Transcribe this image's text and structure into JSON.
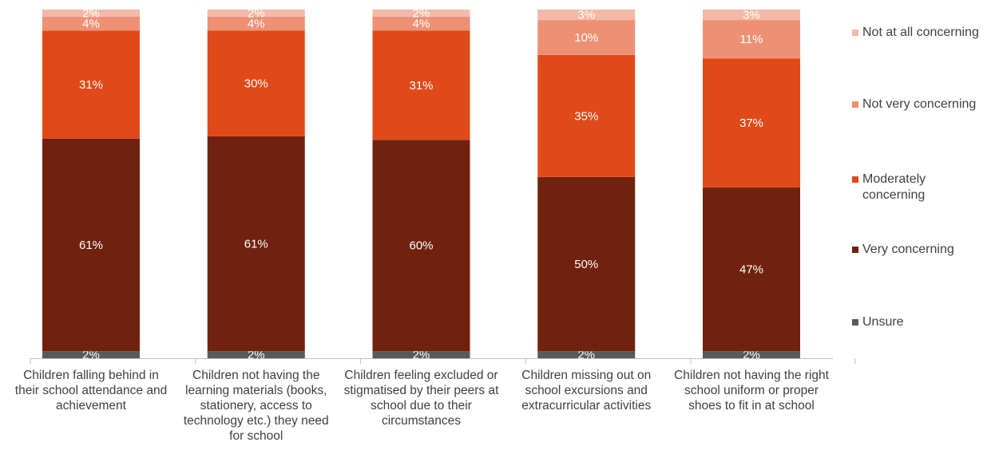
{
  "chart_data": {
    "type": "bar",
    "stacked": true,
    "categories": [
      "Children falling behind in their school attendance and achievement",
      "Children not having the learning materials (books, stationery, access to technology etc.) they need for school",
      "Children feeling excluded or stigmatised by their peers at school due to their circumstances",
      "Children missing out on school excursions and extracurricular activities",
      "Children not having the right school uniform or proper shoes to fit in at school"
    ],
    "series": [
      {
        "name": "Unsure",
        "color": "#595959",
        "values": [
          2,
          2,
          2,
          2,
          2
        ],
        "labels": [
          "2%",
          "2%",
          "2%",
          "2%",
          "2%"
        ]
      },
      {
        "name": "Very concerning",
        "color": "#70220E",
        "values": [
          61,
          61,
          60,
          50,
          47
        ],
        "labels": [
          "61%",
          "61%",
          "60%",
          "50%",
          "47%"
        ]
      },
      {
        "name": "Moderately concerning",
        "color": "#E04A1A",
        "values": [
          31,
          30,
          31,
          35,
          37
        ],
        "labels": [
          "31%",
          "30%",
          "31%",
          "35%",
          "37%"
        ]
      },
      {
        "name": "Not very concerning",
        "color": "#EE9074",
        "values": [
          4,
          4,
          4,
          10,
          11
        ],
        "labels": [
          "4%",
          "4%",
          "4%",
          "10%",
          "11%"
        ]
      },
      {
        "name": "Not at all concerning",
        "color": "#F4B8A6",
        "values": [
          2,
          2,
          2,
          3,
          3
        ],
        "labels": [
          "2%",
          "2%",
          "2%",
          "3%",
          "3%"
        ]
      }
    ],
    "legend_order": [
      "Not at all concerning",
      "Not very concerning",
      "Moderately concerning",
      "Very concerning",
      "Unsure"
    ],
    "legend_position": "right",
    "ylim": [
      0,
      100
    ],
    "grid": false
  }
}
